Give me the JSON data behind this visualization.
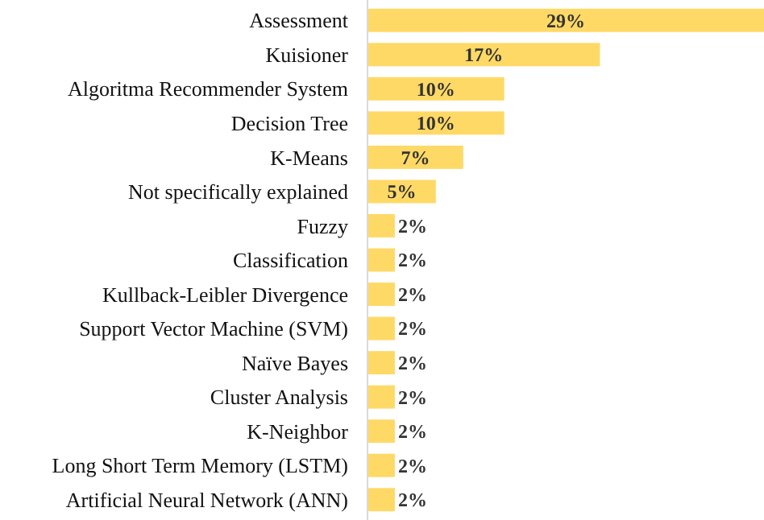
{
  "chart_data": {
    "type": "bar",
    "orientation": "horizontal",
    "categories": [
      "Assessment",
      "Kuisioner",
      "Algoritma Recommender System",
      "Decision Tree",
      "K-Means",
      "Not specifically explained",
      "Fuzzy",
      "Classification",
      "Kullback-Leibler Divergence",
      "Support Vector Machine (SVM)",
      "Naïve Bayes",
      "Cluster Analysis",
      "K-Neighbor",
      "Long Short Term Memory (LSTM)",
      "Artificial Neural Network (ANN)"
    ],
    "values": [
      29,
      17,
      10,
      10,
      7,
      5,
      2,
      2,
      2,
      2,
      2,
      2,
      2,
      2,
      2
    ],
    "value_labels": [
      "29%",
      "17%",
      "10%",
      "10%",
      "7%",
      "5%",
      "2%",
      "2%",
      "2%",
      "2%",
      "2%",
      "2%",
      "2%",
      "2%",
      "2%"
    ],
    "color": "#ffd966"
  }
}
